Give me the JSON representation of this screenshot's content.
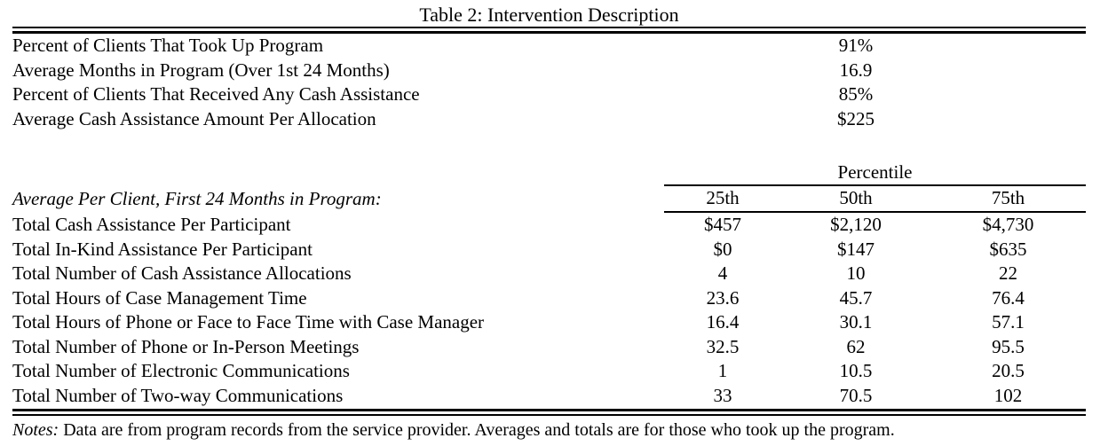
{
  "title": "Table 2: Intervention Description",
  "colors": {
    "text": "#000000",
    "background": "#ffffff",
    "rule": "#000000"
  },
  "summary_rows": [
    {
      "label": "Percent of Clients That Took Up Program",
      "value": "91%"
    },
    {
      "label": "Average Months in Program (Over 1st 24 Months)",
      "value": "16.9"
    },
    {
      "label": "Percent of Clients That Received Any Cash Assistance",
      "value": "85%"
    },
    {
      "label": "Average Cash Assistance Amount Per Allocation",
      "value": "$225"
    }
  ],
  "percentile_section": {
    "group_header": "Percentile",
    "row_header_label": "Average Per Client, First 24 Months in Program:",
    "columns": [
      "25th",
      "50th",
      "75th"
    ],
    "rows": [
      {
        "label": "Total Cash Assistance Per Participant",
        "values": [
          "$457",
          "$2,120",
          "$4,730"
        ]
      },
      {
        "label": "Total In-Kind Assistance Per Participant",
        "values": [
          "$0",
          "$147",
          "$635"
        ]
      },
      {
        "label": "Total Number of Cash Assistance Allocations",
        "values": [
          "4",
          "10",
          "22"
        ]
      },
      {
        "label": "Total Hours of Case Management Time",
        "values": [
          "23.6",
          "45.7",
          "76.4"
        ]
      },
      {
        "label": "Total Hours of Phone or Face to Face Time with Case Manager",
        "values": [
          "16.4",
          "30.1",
          "57.1"
        ]
      },
      {
        "label": "Total Number of Phone or In-Person Meetings",
        "values": [
          "32.5",
          "62",
          "95.5"
        ]
      },
      {
        "label": "Total Number of Electronic Communications",
        "values": [
          "1",
          "10.5",
          "20.5"
        ]
      },
      {
        "label": "Total Number of Two-way Communications",
        "values": [
          "33",
          "70.5",
          "102"
        ]
      }
    ]
  },
  "notes": {
    "label": "Notes:",
    "text": "Data are from program records from the service provider. Averages and totals are for those who took up the program."
  }
}
